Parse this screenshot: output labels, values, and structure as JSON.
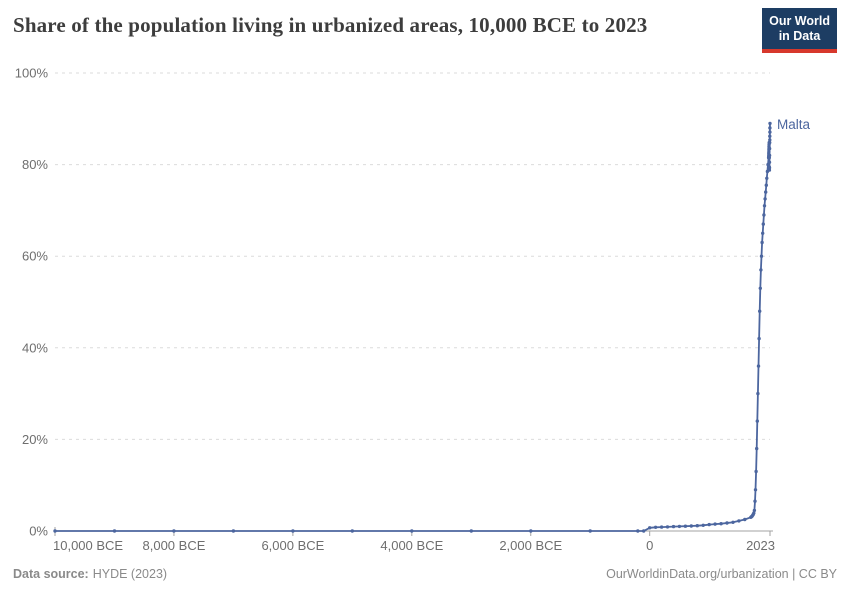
{
  "header": {
    "title": "Share of the population living in urbanized areas, 10,000 BCE to 2023",
    "logo": {
      "line1": "Our World",
      "line2": "in Data"
    }
  },
  "annotation": {
    "series_label": "Malta"
  },
  "footer": {
    "datasource_label": "Data source:",
    "datasource_value": "HYDE (2023)",
    "credit": "OurWorldinData.org/urbanization | CC BY"
  },
  "colors": {
    "line": "#4c669f",
    "grid": "#dbdbdb",
    "axis": "#a3a3a3",
    "tick_text": "#6e6e6e",
    "title_text": "#3d3d3d",
    "footer_text": "#8a8a8a",
    "logo_navy": "#1d3d63",
    "logo_red": "#d7382c"
  },
  "chart_data": {
    "type": "line",
    "title": "Share of the population living in urbanized areas, 10,000 BCE to 2023",
    "entity": "Malta",
    "xlabel": "",
    "ylabel": "",
    "x_range": [
      -10000,
      2023
    ],
    "ylim": [
      0,
      100
    ],
    "grid": "horizontal-dashed",
    "legend_position": "line-end-label",
    "y_ticks": [
      {
        "value": 0,
        "label": "0%"
      },
      {
        "value": 20,
        "label": "20%"
      },
      {
        "value": 40,
        "label": "40%"
      },
      {
        "value": 60,
        "label": "60%"
      },
      {
        "value": 80,
        "label": "80%"
      },
      {
        "value": 100,
        "label": "100%"
      }
    ],
    "x_ticks": [
      {
        "year": -10000,
        "label": "10,000 BCE",
        "align": "start"
      },
      {
        "year": -8000,
        "label": "8,000 BCE",
        "align": "middle"
      },
      {
        "year": -6000,
        "label": "6,000 BCE",
        "align": "middle"
      },
      {
        "year": -4000,
        "label": "4,000 BCE",
        "align": "middle"
      },
      {
        "year": -2000,
        "label": "2,000 BCE",
        "align": "middle"
      },
      {
        "year": 0,
        "label": "0",
        "align": "middle"
      },
      {
        "year": 2023,
        "label": "2023",
        "align": "end"
      }
    ],
    "series": [
      {
        "name": "Malta",
        "points": [
          [
            -10000,
            0
          ],
          [
            -9000,
            0
          ],
          [
            -8000,
            0
          ],
          [
            -7000,
            0
          ],
          [
            -6000,
            0
          ],
          [
            -5000,
            0
          ],
          [
            -4000,
            0
          ],
          [
            -3000,
            0
          ],
          [
            -2000,
            0
          ],
          [
            -1000,
            0
          ],
          [
            -200,
            0
          ],
          [
            -100,
            0
          ],
          [
            0,
            0.7
          ],
          [
            100,
            0.8
          ],
          [
            200,
            0.85
          ],
          [
            300,
            0.9
          ],
          [
            400,
            0.95
          ],
          [
            500,
            1.0
          ],
          [
            600,
            1.05
          ],
          [
            700,
            1.1
          ],
          [
            800,
            1.15
          ],
          [
            900,
            1.25
          ],
          [
            1000,
            1.4
          ],
          [
            1100,
            1.5
          ],
          [
            1200,
            1.6
          ],
          [
            1300,
            1.75
          ],
          [
            1400,
            1.9
          ],
          [
            1500,
            2.2
          ],
          [
            1600,
            2.5
          ],
          [
            1700,
            3.0
          ],
          [
            1710,
            3.1
          ],
          [
            1720,
            3.2
          ],
          [
            1730,
            3.4
          ],
          [
            1740,
            3.6
          ],
          [
            1750,
            3.9
          ],
          [
            1760,
            4.5
          ],
          [
            1770,
            6.5
          ],
          [
            1780,
            9
          ],
          [
            1790,
            13
          ],
          [
            1800,
            18
          ],
          [
            1810,
            24
          ],
          [
            1820,
            30
          ],
          [
            1830,
            36
          ],
          [
            1840,
            42
          ],
          [
            1850,
            48
          ],
          [
            1860,
            53
          ],
          [
            1870,
            57
          ],
          [
            1880,
            60
          ],
          [
            1890,
            63
          ],
          [
            1900,
            65
          ],
          [
            1910,
            67
          ],
          [
            1920,
            69
          ],
          [
            1930,
            71
          ],
          [
            1940,
            72.5
          ],
          [
            1950,
            74
          ],
          [
            1960,
            75.5
          ],
          [
            1970,
            77
          ],
          [
            1980,
            78.5
          ],
          [
            1990,
            80
          ],
          [
            2000,
            81.5
          ],
          [
            2001,
            81.8
          ],
          [
            2002,
            82.1
          ],
          [
            2003,
            82.5
          ],
          [
            2004,
            82.8
          ],
          [
            2005,
            83.2
          ],
          [
            2006,
            83.6
          ],
          [
            2007,
            84.0
          ],
          [
            2008,
            84.4
          ],
          [
            2009,
            84.8
          ],
          [
            2010,
            83.5
          ],
          [
            2011,
            81.5
          ],
          [
            2012,
            79.5
          ],
          [
            2013,
            78.8
          ],
          [
            2014,
            79.3
          ],
          [
            2015,
            80.5
          ],
          [
            2016,
            82.0
          ],
          [
            2017,
            83.5
          ],
          [
            2018,
            84.8
          ],
          [
            2019,
            85.4
          ],
          [
            2020,
            86.2
          ],
          [
            2021,
            87.1
          ],
          [
            2022,
            88.0
          ],
          [
            2023,
            89.0
          ]
        ]
      }
    ]
  }
}
